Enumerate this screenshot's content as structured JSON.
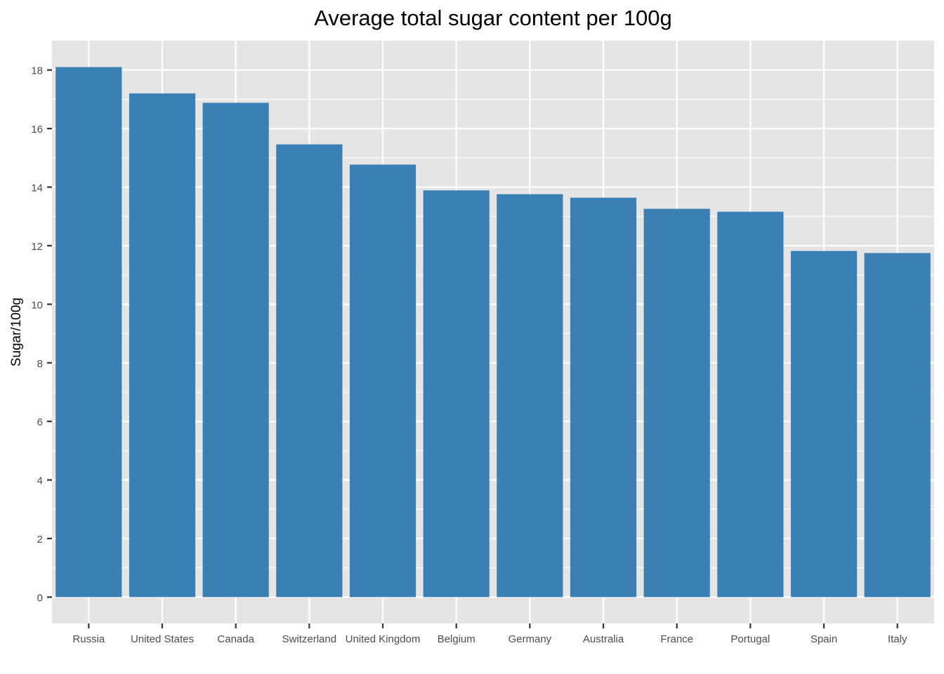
{
  "chart_data": {
    "type": "bar",
    "title": "Average total sugar content per 100g",
    "xlabel": "",
    "ylabel": "Sugar/100g",
    "categories": [
      "Russia",
      "United States",
      "Canada",
      "Switzerland",
      "United Kingdom",
      "Belgium",
      "Germany",
      "Australia",
      "France",
      "Portugal",
      "Spain",
      "Italy"
    ],
    "values": [
      18.1,
      17.2,
      16.88,
      15.46,
      14.77,
      13.89,
      13.76,
      13.64,
      13.26,
      13.16,
      11.82,
      11.75
    ],
    "ylim": [
      -0.9,
      19.0
    ],
    "yticks": [
      0,
      2,
      4,
      6,
      8,
      10,
      12,
      14,
      16,
      18
    ],
    "grid": true,
    "colors": {
      "bar": "#3A80B5",
      "panel": "#E5E5E5",
      "grid": "#FFFFFF"
    }
  }
}
